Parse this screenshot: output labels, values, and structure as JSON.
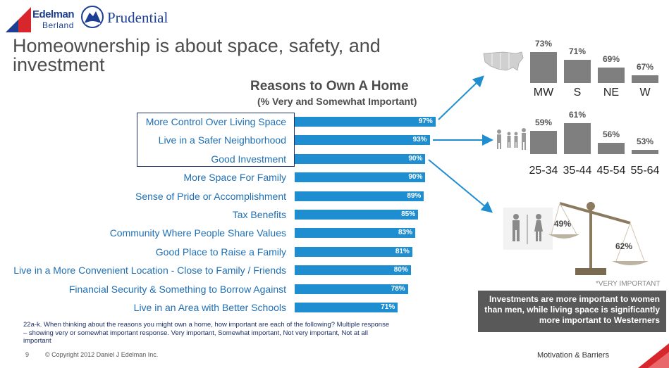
{
  "header": {
    "edelman_logo": "Edelman Berland",
    "prudential_logo": "Prudential",
    "page_title_line1": "Homeownership is about space, safety, and",
    "page_title_line2": "investment"
  },
  "chart_data": [
    {
      "type": "bar",
      "orientation": "horizontal",
      "title": "Reasons to Own A Home",
      "subtitle": "(% Very and Somewhat Important)",
      "categories": [
        "More Control Over Living Space",
        "Live in a Safer Neighborhood",
        "Good Investment",
        "More Space For Family",
        "Sense of Pride or Accomplishment",
        "Tax Benefits",
        "Community Where People Share Values",
        "Good Place to Raise a Family",
        "Live in a More Convenient Location - Close to Family / Friends",
        "Financial Security & Something to Borrow Against",
        "Live in an Area with Better Schools"
      ],
      "values": [
        97,
        93,
        90,
        90,
        89,
        85,
        83,
        81,
        80,
        78,
        71
      ],
      "value_labels": [
        "97%",
        "93%",
        "90%",
        "90%",
        "89%",
        "85%",
        "83%",
        "81%",
        "80%",
        "78%",
        "71%"
      ],
      "xlim": [
        0,
        100
      ],
      "bar_color": "#1f8ed0"
    },
    {
      "type": "bar",
      "categories": [
        "MW",
        "S",
        "NE",
        "W"
      ],
      "values": [
        73,
        71,
        69,
        67
      ],
      "value_labels": [
        "73%",
        "71%",
        "69%",
        "67%"
      ],
      "bar_color": "#7f7f7f"
    },
    {
      "type": "bar",
      "categories": [
        "25-34",
        "35-44",
        "45-54",
        "55-64"
      ],
      "values": [
        59,
        61,
        56,
        53
      ],
      "value_labels": [
        "59%",
        "61%",
        "56%",
        "53%"
      ],
      "bar_color": "#7f7f7f"
    }
  ],
  "scale": {
    "left_value": "49%",
    "right_value": "62%"
  },
  "notes": {
    "very_important": "*VERY IMPORTANT",
    "callout": "Investments are more important to women than men, while living space is significantly more important to Westerners",
    "question": "22a-k. When thinking about the reasons you might own a home, how important are each of the following? Multiple response – showing very or somewhat important response. Very important, Somewhat important, Not very important, Not at all important"
  },
  "footer": {
    "page_number": "9",
    "copyright": "© Copyright 2012 Daniel J Edelman Inc.",
    "section": "Motivation & Barriers"
  },
  "colors": {
    "accent_red": "#d7262c",
    "brand_blue": "#1c3f94",
    "label_blue": "#1f6fb3",
    "bar_blue": "#1f8ed0",
    "gray_bar": "#7f7f7f"
  }
}
